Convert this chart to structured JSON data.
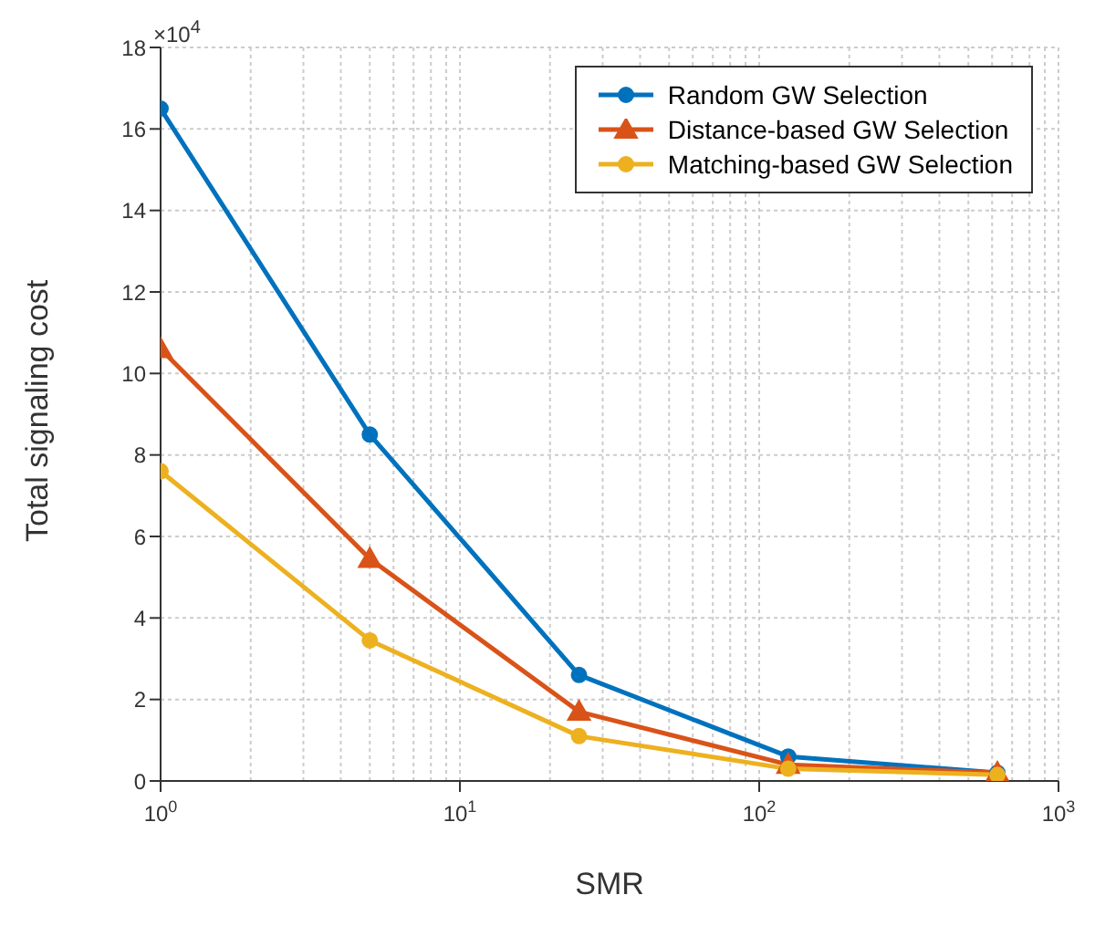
{
  "chart_data": {
    "type": "line",
    "xlabel": "SMR",
    "ylabel": "Total signaling cost",
    "annotations": [
      "×10$^{4}$"
    ],
    "x": [
      1,
      5,
      25,
      125,
      625
    ],
    "series": [
      {
        "name": "Random GW Selection",
        "color": "#0072bd",
        "marker": "circle",
        "values": [
          16.5,
          8.5,
          2.6,
          0.6,
          0.2
        ]
      },
      {
        "name": "Distance-based GW Selection",
        "color": "#d95319",
        "marker": "triangle",
        "values": [
          10.6,
          5.45,
          1.7,
          0.4,
          0.2
        ]
      },
      {
        "name": "Matching-based GW Selection",
        "color": "#edb120",
        "marker": "circle",
        "values": [
          7.6,
          3.45,
          1.1,
          0.3,
          0.15
        ]
      }
    ],
    "log": "x",
    "xlim": [
      1,
      1000
    ],
    "xticks": [
      {
        "value": 1,
        "label": "10$^{0}$"
      },
      {
        "value": 10,
        "label": "10$^{1}$"
      },
      {
        "value": 100,
        "label": "10$^{2}$"
      },
      {
        "value": 1000,
        "label": "10$^{3}$"
      }
    ],
    "ylim": [
      0,
      18
    ],
    "yticks": [
      0,
      2,
      4,
      6,
      8,
      10,
      12,
      14,
      16,
      18
    ],
    "grid": true,
    "legend": "top right"
  }
}
